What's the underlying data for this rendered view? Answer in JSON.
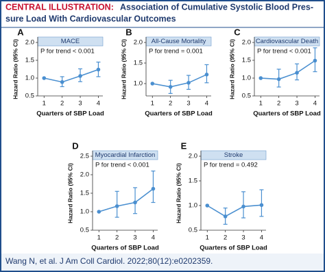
{
  "header": {
    "label": "CENTRAL ILLUSTRATION:",
    "title_lines": [
      "Association of Cumulative Systolic Blood Pres-",
      "sure Load With Cardiovascular Outcomes"
    ]
  },
  "footer": "Wang N, et al. J Am Coll Cardiol. 2022;80(12):e0202359.",
  "chart_data": [
    {
      "type": "line",
      "panel": "A",
      "title": "MACE",
      "annotation": "P for trend < 0.001",
      "x_label": "Quarters of SBP Load",
      "y_label": "Hazard Ratio (95% CI)",
      "color": "#4a8fd0",
      "categories": [
        "1",
        "2",
        "3",
        "4"
      ],
      "values": [
        1.0,
        0.89,
        1.06,
        1.24
      ],
      "lower": [
        1.0,
        0.76,
        0.9,
        1.04
      ],
      "upper": [
        1.0,
        1.04,
        1.26,
        1.45
      ],
      "ylim": [
        0.5,
        2.0
      ],
      "yticks": [
        {
          "value": 0.5,
          "label": "0.5"
        },
        {
          "value": 1,
          "label": "1.0"
        },
        {
          "value": 1.5,
          "label": "1.5"
        },
        {
          "value": 2,
          "label": "2.0"
        }
      ]
    },
    {
      "type": "line",
      "panel": "B",
      "title": "All-Cause Mortality",
      "annotation": "P for trend = 0.001",
      "x_label": "Quarters of SBP Load",
      "y_label": "Hazard Ratio (95% CI)",
      "color": "#4a8fd0",
      "categories": [
        "1",
        "2",
        "3",
        "4"
      ],
      "values": [
        1.0,
        0.92,
        1.02,
        1.22
      ],
      "lower": [
        1.0,
        0.76,
        0.86,
        1.02
      ],
      "upper": [
        1.0,
        1.08,
        1.2,
        1.46
      ],
      "ylim": [
        0.7,
        2.0
      ],
      "yticks": [
        {
          "value": 1,
          "label": "1.0"
        },
        {
          "value": 1.5,
          "label": "1.5"
        },
        {
          "value": 2,
          "label": "2.0"
        }
      ]
    },
    {
      "type": "line",
      "panel": "C",
      "title": "Cardiovascular Death",
      "annotation": "P for trend < 0.001",
      "x_label": "Quarters of SBP Load",
      "y_label": "Hazard Ratio (95% CI)",
      "color": "#4a8fd0",
      "categories": [
        "1",
        "2",
        "3",
        "4"
      ],
      "values": [
        1.0,
        0.97,
        1.15,
        1.49
      ],
      "lower": [
        1.0,
        0.75,
        0.95,
        1.18
      ],
      "upper": [
        1.0,
        1.25,
        1.4,
        1.85
      ],
      "ylim": [
        0.5,
        2.0
      ],
      "yticks": [
        {
          "value": 0.5,
          "label": "0.5"
        },
        {
          "value": 1,
          "label": "1.0"
        },
        {
          "value": 1.5,
          "label": "1.5"
        },
        {
          "value": 2,
          "label": "2.0"
        }
      ]
    },
    {
      "type": "line",
      "panel": "D",
      "title": "Myocardial Infarction",
      "annotation": "P for trend < 0.001",
      "x_label": "Quarters of SBP Load",
      "y_label": "Hazard Ratio (95% CI)",
      "color": "#4a8fd0",
      "categories": [
        "1",
        "2",
        "3",
        "4"
      ],
      "values": [
        1.0,
        1.15,
        1.25,
        1.62
      ],
      "lower": [
        1.0,
        0.85,
        0.95,
        1.25
      ],
      "upper": [
        1.0,
        1.55,
        1.65,
        2.1
      ],
      "ylim": [
        0.5,
        2.5
      ],
      "yticks": [
        {
          "value": 0.5,
          "label": "0.5"
        },
        {
          "value": 1,
          "label": "1.0"
        },
        {
          "value": 1.5,
          "label": "1.5"
        },
        {
          "value": 2,
          "label": "2.0"
        },
        {
          "value": 2.5,
          "label": "2.5"
        }
      ]
    },
    {
      "type": "line",
      "panel": "E",
      "title": "Stroke",
      "annotation": "P for trend = 0.492",
      "x_label": "Quarters of SBP Load",
      "y_label": "Hazard Ratio (95% CI)",
      "color": "#4a8fd0",
      "categories": [
        "1",
        "2",
        "3",
        "4"
      ],
      "values": [
        1.0,
        0.78,
        0.98,
        1.01
      ],
      "lower": [
        1.0,
        0.62,
        0.75,
        0.78
      ],
      "upper": [
        1.0,
        0.95,
        1.28,
        1.32
      ],
      "ylim": [
        0.5,
        2.0
      ],
      "yticks": [
        {
          "value": 0.5,
          "label": "0.5"
        },
        {
          "value": 1,
          "label": "1.0"
        },
        {
          "value": 1.5,
          "label": "1.5"
        },
        {
          "value": 2,
          "label": "2.0"
        }
      ]
    }
  ]
}
